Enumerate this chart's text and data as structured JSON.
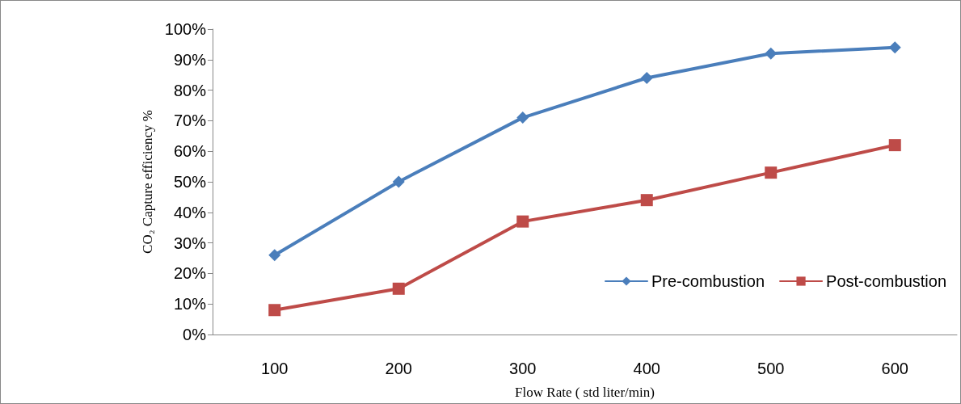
{
  "chart_data": {
    "type": "line",
    "xlabel": "Flow Rate ( std liter/min)",
    "ylabel": "CO₂ Capture efficiency %",
    "categories": [
      "100",
      "200",
      "300",
      "400",
      "500",
      "600"
    ],
    "series": [
      {
        "name": "Pre-combustion",
        "color": "#4a7ebb",
        "marker": "diamond",
        "values": [
          26,
          50,
          71,
          84,
          92,
          94
        ]
      },
      {
        "name": "Post-combustion",
        "color": "#be4b48",
        "marker": "square",
        "values": [
          8,
          15,
          37,
          44,
          53,
          62
        ]
      }
    ],
    "ylim": [
      0,
      100
    ],
    "yticks": [
      {
        "value": 0,
        "label": "0%"
      },
      {
        "value": 10,
        "label": "10%"
      },
      {
        "value": 20,
        "label": "20%"
      },
      {
        "value": 30,
        "label": "30%"
      },
      {
        "value": 40,
        "label": "40%"
      },
      {
        "value": 50,
        "label": "50%"
      },
      {
        "value": 60,
        "label": "60%"
      },
      {
        "value": 70,
        "label": "70%"
      },
      {
        "value": 80,
        "label": "80%"
      },
      {
        "value": 90,
        "label": "90%"
      },
      {
        "value": 100,
        "label": "100%"
      }
    ],
    "grid": false,
    "legend": "right",
    "line_style": "solid"
  }
}
